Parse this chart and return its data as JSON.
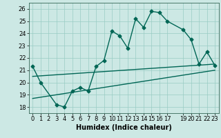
{
  "xlabel": "Humidex (Indice chaleur)",
  "bg_color": "#cce8e4",
  "grid_color": "#99ccc4",
  "line_color": "#006655",
  "xlim": [
    -0.5,
    23.5
  ],
  "ylim": [
    17.5,
    26.5
  ],
  "xtick_positions": [
    0,
    1,
    2,
    3,
    4,
    5,
    6,
    7,
    8,
    9,
    10,
    11,
    12,
    13,
    14,
    15,
    16,
    17,
    19,
    20,
    21,
    22,
    23
  ],
  "xtick_labels": [
    "0",
    "1",
    "2",
    "3",
    "4",
    "5",
    "6",
    "7",
    "8",
    "9",
    "10",
    "11",
    "12",
    "13",
    "14",
    "15",
    "16",
    "17",
    "19",
    "20",
    "21",
    "22",
    "23"
  ],
  "yticks": [
    18,
    19,
    20,
    21,
    22,
    23,
    24,
    25,
    26
  ],
  "series1_x": [
    0,
    1,
    3,
    4,
    5,
    6,
    7,
    8,
    9,
    10,
    11,
    12,
    13,
    14,
    15,
    16,
    17,
    19,
    20,
    21,
    22,
    23
  ],
  "series1_y": [
    21.3,
    20.0,
    18.2,
    18.0,
    19.3,
    19.6,
    19.3,
    21.3,
    21.8,
    24.2,
    23.8,
    22.8,
    25.2,
    24.5,
    25.8,
    25.7,
    25.0,
    24.3,
    23.5,
    21.5,
    22.5,
    21.4
  ],
  "series2_x": [
    0,
    23
  ],
  "series2_y": [
    20.5,
    21.5
  ],
  "series3_x": [
    0,
    23
  ],
  "series3_y": [
    18.7,
    21.0
  ],
  "marker": "D",
  "marker_size": 2.5,
  "line_width": 1.0,
  "font_size_label": 7,
  "font_size_tick": 6
}
